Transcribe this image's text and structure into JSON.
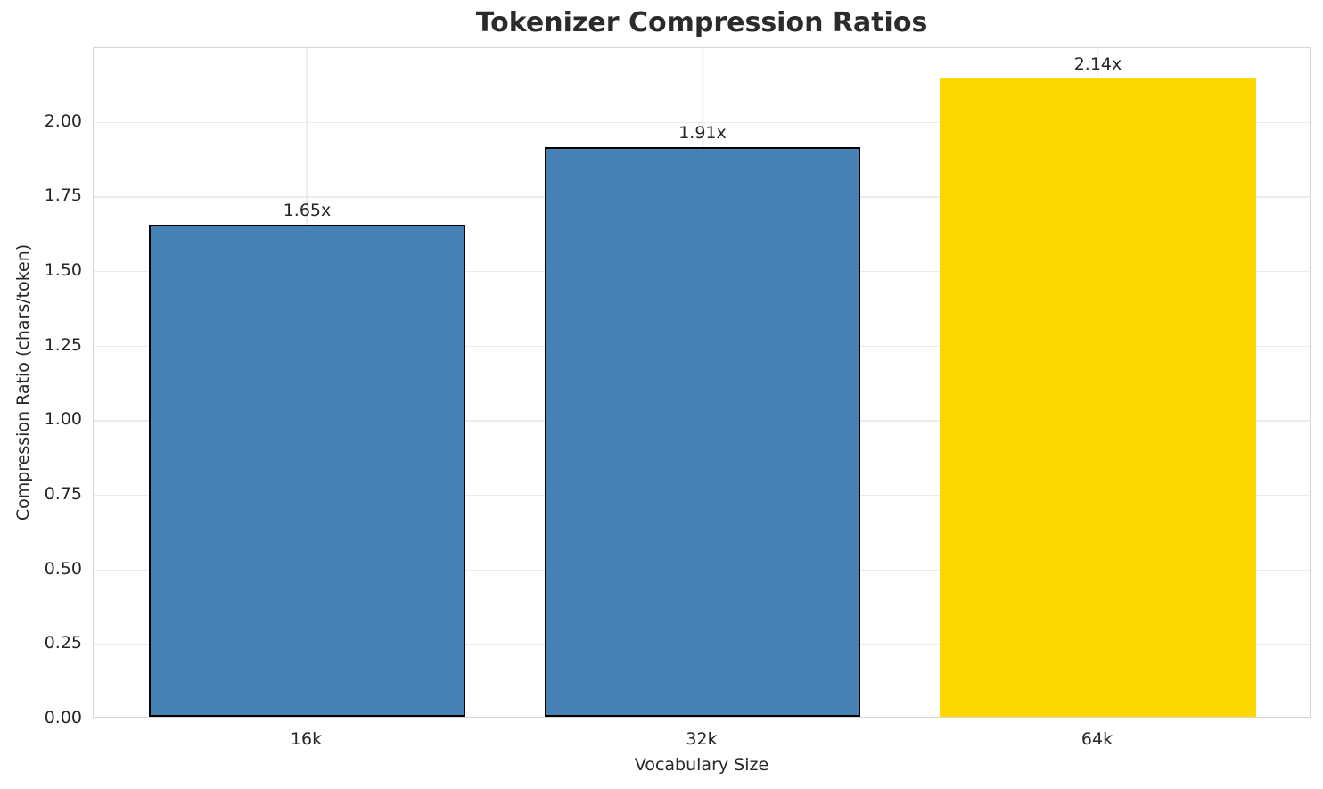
{
  "chart_data": {
    "type": "bar",
    "title": "Tokenizer Compression Ratios",
    "xlabel": "Vocabulary Size",
    "ylabel": "Compression Ratio (chars/token)",
    "categories": [
      "16k",
      "32k",
      "64k"
    ],
    "values": [
      1.65,
      1.91,
      2.14
    ],
    "bar_labels": [
      "1.65x",
      "1.91x",
      "2.14x"
    ],
    "bar_colors": [
      "#4682b4",
      "#4682b4",
      "#ffd700"
    ],
    "bar_edge_colors": [
      "#000000",
      "#000000",
      "none"
    ],
    "bar_edge_width": 2,
    "bar_width_ratio": 0.8,
    "x_margin": 0.54,
    "ylim": [
      0,
      2.247
    ],
    "yticks": [
      0,
      0.25,
      0.5,
      0.75,
      1.0,
      1.25,
      1.5,
      1.75,
      2.0
    ],
    "ytick_labels": [
      "0.00",
      "0.25",
      "0.50",
      "0.75",
      "1.00",
      "1.25",
      "1.50",
      "1.75",
      "2.00"
    ],
    "grid": true,
    "legend": "none",
    "colors": {
      "grid": "#ebebeb",
      "spine": "#d5d5d5",
      "text": "#262626",
      "title": "#2b2b2b",
      "background": "#ffffff"
    }
  }
}
